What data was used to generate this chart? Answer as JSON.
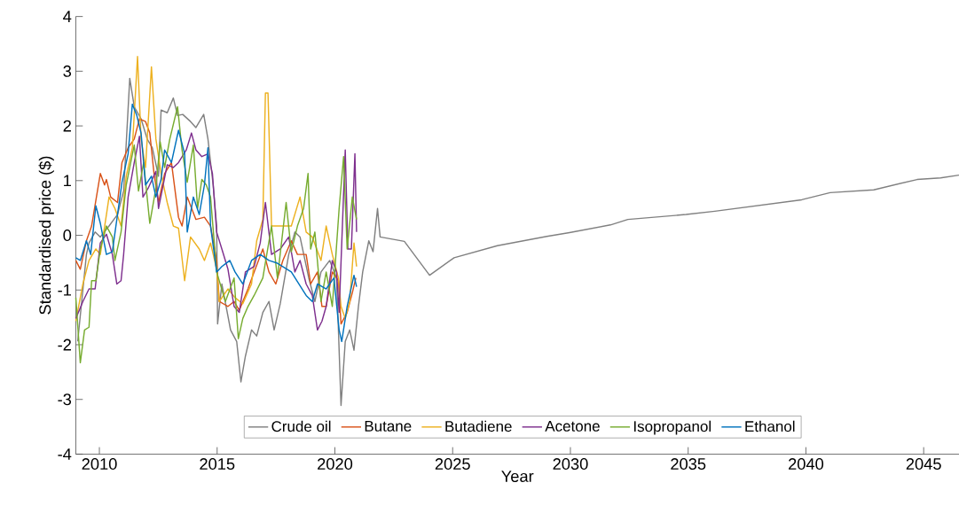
{
  "chart_data": {
    "type": "line",
    "xlabel": "Year",
    "ylabel": "Standardised price ($)",
    "xlim": [
      2009,
      2046.5
    ],
    "ylim": [
      -4,
      4
    ],
    "xticks": [
      2010,
      2015,
      2020,
      2025,
      2030,
      2035,
      2040,
      2045
    ],
    "yticks": [
      -4,
      -3,
      -2,
      -1,
      0,
      1,
      2,
      3,
      4
    ],
    "grid": false,
    "legend": "bottom",
    "marker": "none",
    "line_style": "solid",
    "series": [
      {
        "name": "Crude oil",
        "color": "#808080",
        "x": [
          2009.08,
          2009.45,
          2009.56,
          2009.82,
          2010.04,
          2010.41,
          2010.77,
          2011.03,
          2011.29,
          2011.48,
          2011.77,
          2012.03,
          2012.25,
          2012.51,
          2012.62,
          2012.88,
          2013.14,
          2013.32,
          2013.54,
          2013.87,
          2014.1,
          2014.43,
          2014.61,
          2014.83,
          2014.98,
          2015.02,
          2015.2,
          2015.57,
          2015.83,
          2016.01,
          2016.2,
          2016.46,
          2016.68,
          2016.94,
          2017.2,
          2017.42,
          2017.68,
          2018.04,
          2018.3,
          2018.52,
          2018.89,
          2019.15,
          2019.41,
          2019.78,
          2020.07,
          2020.15,
          2020.26,
          2020.44,
          2020.63,
          2020.81,
          2021.0,
          2021.18,
          2021.44,
          2021.62,
          2021.81,
          2021.92,
          2022.95,
          2024.02,
          2025.06,
          2026.9,
          2029.0,
          2029.96,
          2031.7,
          2032.44,
          2034.91,
          2036.13,
          2039.82,
          2041.03,
          2042.88,
          2044.72,
          2045.72,
          2046.5
        ],
        "values": [
          -1.94,
          -0.35,
          -0.14,
          0.06,
          -0.03,
          0.17,
          0.38,
          0.81,
          2.87,
          2.35,
          2.13,
          1.76,
          1.6,
          1.08,
          2.29,
          2.24,
          2.51,
          2.19,
          2.21,
          2.08,
          1.97,
          2.21,
          1.76,
          0.92,
          0.17,
          -1.62,
          -0.89,
          -1.73,
          -1.94,
          -2.68,
          -2.21,
          -1.73,
          -1.84,
          -1.41,
          -1.21,
          -1.73,
          -1.25,
          -0.35,
          0.06,
          -0.03,
          -0.78,
          -1.21,
          -0.67,
          -0.46,
          -0.78,
          -1.73,
          -3.11,
          -1.94,
          -1.73,
          -2.1,
          -1.3,
          -0.67,
          -0.1,
          -0.3,
          0.49,
          -0.03,
          -0.11,
          -0.73,
          -0.41,
          -0.19,
          -0.02,
          0.05,
          0.19,
          0.29,
          0.38,
          0.44,
          0.65,
          0.78,
          0.83,
          1.02,
          1.05,
          1.1
        ]
      },
      {
        "name": "Butane",
        "color": "#d95319",
        "x": [
          2009.0,
          2009.19,
          2009.45,
          2009.67,
          2010.04,
          2010.22,
          2010.3,
          2010.48,
          2010.77,
          2010.96,
          2011.22,
          2011.48,
          2011.7,
          2011.96,
          2012.14,
          2012.32,
          2012.51,
          2012.77,
          2013.06,
          2013.36,
          2013.51,
          2013.73,
          2014.1,
          2014.46,
          2014.72,
          2014.98,
          2015.09,
          2015.46,
          2015.72,
          2015.94,
          2016.31,
          2016.57,
          2016.94,
          2017.2,
          2017.49,
          2017.79,
          2018.15,
          2018.41,
          2018.78,
          2018.97,
          2019.26,
          2019.45,
          2019.63,
          2019.89,
          2020.15,
          2020.26,
          2020.52,
          2020.74,
          2020.89
        ],
        "values": [
          -0.46,
          -0.62,
          -0.1,
          0.17,
          1.13,
          0.92,
          1.02,
          0.7,
          0.6,
          1.33,
          1.6,
          1.76,
          2.13,
          2.08,
          1.87,
          1.13,
          0.6,
          1.13,
          1.33,
          0.33,
          0.17,
          0.7,
          0.29,
          0.33,
          0.17,
          -0.46,
          -1.21,
          -1.3,
          -1.21,
          -1.37,
          -0.98,
          -0.67,
          -0.25,
          -0.67,
          -0.89,
          -0.46,
          -0.1,
          -0.35,
          -0.35,
          -0.89,
          -0.67,
          -1.3,
          -1.3,
          -0.67,
          -0.83,
          -1.62,
          -1.41,
          -1.05,
          -0.78
        ]
      },
      {
        "name": "Butadiene",
        "color": "#edb120",
        "x": [
          2009.0,
          2009.3,
          2009.56,
          2009.85,
          2010.04,
          2010.3,
          2010.41,
          2010.66,
          2010.92,
          2011.14,
          2011.4,
          2011.62,
          2011.77,
          2011.96,
          2012.21,
          2012.4,
          2012.62,
          2012.88,
          2013.14,
          2013.36,
          2013.62,
          2013.87,
          2014.24,
          2014.46,
          2014.72,
          2014.98,
          2015.09,
          2015.46,
          2015.76,
          2016.09,
          2016.46,
          2016.68,
          2016.94,
          2017.05,
          2017.16,
          2017.31,
          2017.68,
          2018.15,
          2018.52,
          2018.78,
          2019.04,
          2019.41,
          2019.63,
          2019.89,
          2020.15,
          2020.26,
          2020.44,
          2020.63,
          2020.81,
          2020.92
        ],
        "values": [
          -1.57,
          -0.89,
          -0.46,
          -0.25,
          -0.35,
          0.38,
          0.7,
          0.49,
          0.17,
          1.08,
          1.6,
          3.27,
          1.76,
          1.24,
          3.08,
          1.76,
          1.13,
          0.6,
          0.17,
          0.13,
          -0.83,
          -0.03,
          -0.25,
          -0.46,
          -0.14,
          -0.62,
          -1.21,
          -0.98,
          -1.14,
          -1.25,
          -0.89,
          -0.1,
          0.29,
          2.6,
          2.6,
          0.17,
          0.17,
          0.17,
          0.7,
          0.06,
          -0.03,
          -0.46,
          0.17,
          -0.35,
          -0.78,
          -1.3,
          -1.52,
          -1.21,
          -0.14,
          -0.57
        ]
      },
      {
        "name": "Acetone",
        "color": "#7e2f8e",
        "x": [
          2009.0,
          2009.3,
          2009.56,
          2009.82,
          2010.04,
          2010.3,
          2010.55,
          2010.74,
          2010.92,
          2011.03,
          2011.22,
          2011.48,
          2011.7,
          2011.85,
          2012.07,
          2012.4,
          2012.51,
          2012.88,
          2013.14,
          2013.36,
          2013.69,
          2013.91,
          2014.1,
          2014.35,
          2014.61,
          2014.8,
          2014.98,
          2015.2,
          2015.46,
          2015.72,
          2015.94,
          2016.2,
          2016.57,
          2016.83,
          2017.05,
          2017.31,
          2017.68,
          2018.04,
          2018.3,
          2018.52,
          2018.78,
          2019.04,
          2019.26,
          2019.45,
          2019.63,
          2019.89,
          2020.07,
          2020.18,
          2020.44,
          2020.55,
          2020.7,
          2020.85,
          2020.92
        ],
        "values": [
          -1.52,
          -1.21,
          -0.98,
          -0.98,
          -0.14,
          0.02,
          -0.35,
          -0.89,
          -0.83,
          -0.35,
          0.7,
          1.33,
          1.81,
          0.7,
          0.86,
          1.17,
          0.49,
          1.29,
          1.24,
          1.33,
          1.56,
          1.87,
          1.56,
          1.44,
          1.49,
          1.13,
          0.06,
          -0.25,
          -0.62,
          -1.3,
          -1.41,
          -0.67,
          -0.57,
          -0.14,
          0.6,
          -0.35,
          -0.25,
          -0.03,
          -0.67,
          -0.46,
          -0.89,
          -1.1,
          -1.73,
          -1.57,
          -1.3,
          -0.46,
          -0.67,
          -1.41,
          1.56,
          -0.25,
          -0.25,
          1.49,
          0.06
        ]
      },
      {
        "name": "Isopropanol",
        "color": "#77ac30",
        "x": [
          2009.0,
          2009.19,
          2009.37,
          2009.56,
          2009.67,
          2009.85,
          2010.04,
          2010.3,
          2010.55,
          2010.66,
          2010.92,
          2011.14,
          2011.48,
          2011.66,
          2011.88,
          2012.14,
          2012.4,
          2012.58,
          2012.77,
          2012.99,
          2013.32,
          2013.51,
          2013.73,
          2013.99,
          2014.17,
          2014.35,
          2014.54,
          2014.72,
          2014.98,
          2015.35,
          2015.72,
          2015.9,
          2016.09,
          2016.31,
          2016.57,
          2016.94,
          2017.31,
          2017.56,
          2017.93,
          2018.15,
          2018.41,
          2018.67,
          2018.86,
          2018.97,
          2019.15,
          2019.41,
          2019.63,
          2019.89,
          2020.18,
          2020.37,
          2020.52,
          2020.74,
          2020.92
        ],
        "values": [
          -1.14,
          -2.33,
          -1.73,
          -1.68,
          -0.83,
          -0.83,
          -0.25,
          0.17,
          -0.03,
          -0.46,
          0.06,
          0.92,
          1.65,
          0.81,
          1.33,
          0.22,
          0.86,
          1.71,
          1.24,
          1.76,
          2.35,
          1.56,
          0.97,
          1.65,
          0.49,
          1.02,
          0.92,
          0.7,
          -0.67,
          -1.21,
          -0.78,
          -1.89,
          -1.52,
          -1.3,
          -1.1,
          -0.78,
          0.17,
          -0.78,
          0.6,
          -0.3,
          0.17,
          0.49,
          1.13,
          -0.25,
          0.06,
          -1.21,
          -0.67,
          -1.3,
          0.49,
          1.44,
          -0.25,
          0.7,
          0.29
        ]
      },
      {
        "name": "Ethanol",
        "color": "#0072bd",
        "x": [
          2009.0,
          2009.19,
          2009.45,
          2009.63,
          2009.85,
          2010.04,
          2010.3,
          2010.55,
          2010.77,
          2010.96,
          2011.22,
          2011.4,
          2011.59,
          2011.77,
          2011.96,
          2012.21,
          2012.4,
          2012.62,
          2012.77,
          2013.06,
          2013.36,
          2013.62,
          2013.73,
          2013.99,
          2014.24,
          2014.46,
          2014.61,
          2014.72,
          2014.98,
          2015.2,
          2015.54,
          2015.76,
          2016.09,
          2016.46,
          2016.83,
          2017.2,
          2017.56,
          2018.15,
          2018.78,
          2019.04,
          2019.26,
          2019.63,
          2019.96,
          2020.18,
          2020.29,
          2020.52,
          2020.81,
          2020.92
        ],
        "values": [
          -0.41,
          -0.46,
          -0.1,
          -0.35,
          0.54,
          0.22,
          -0.35,
          -0.3,
          0.38,
          0.97,
          1.49,
          2.4,
          2.19,
          1.87,
          0.92,
          1.08,
          0.7,
          1.02,
          1.56,
          1.33,
          1.92,
          1.49,
          0.06,
          0.7,
          0.38,
          0.92,
          1.6,
          0.17,
          -0.67,
          -0.57,
          -0.46,
          -0.67,
          -0.89,
          -0.46,
          -0.35,
          -0.46,
          -0.51,
          -0.67,
          -1.1,
          -1.21,
          -0.89,
          -0.98,
          -0.78,
          -1.73,
          -1.94,
          -1.3,
          -0.73,
          -0.94
        ]
      }
    ]
  }
}
